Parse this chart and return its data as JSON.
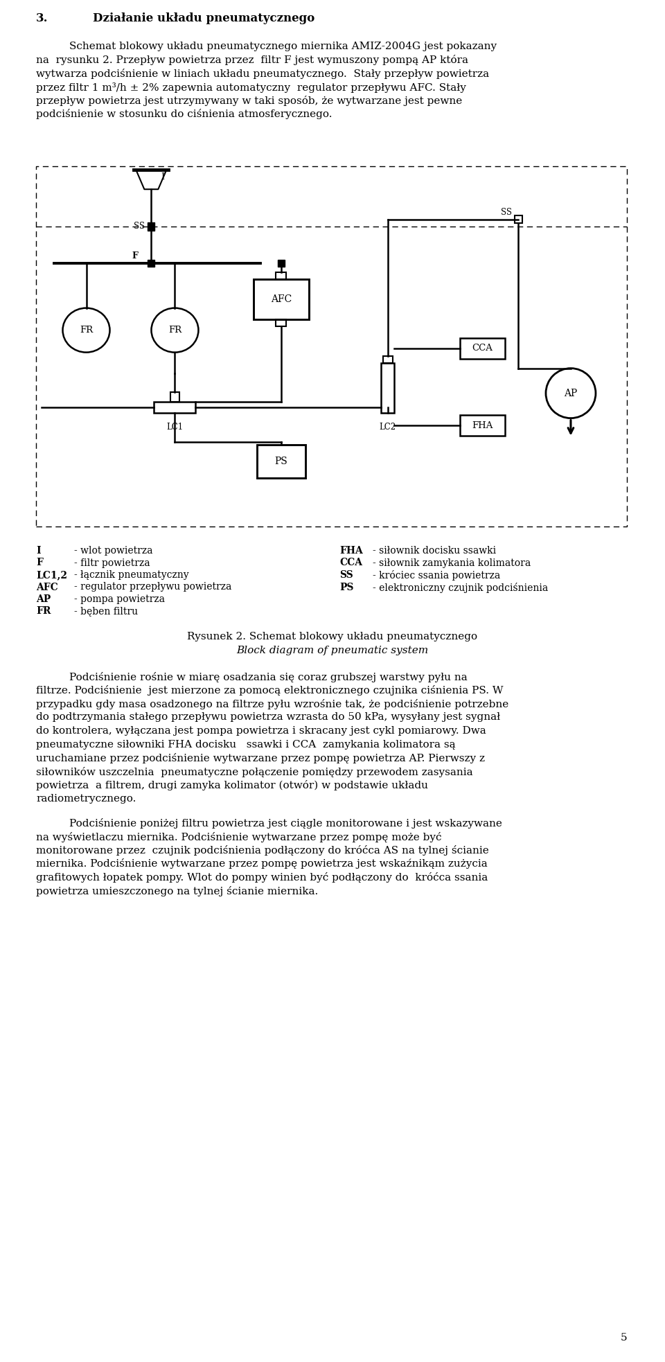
{
  "title_number": "3.",
  "title_text": "Działanie układu pneumatycznego",
  "para1_lines": [
    [
      "indent",
      "Schemat blokowy układu pneumatycznego miernika AMIZ-2004G jest pokazany"
    ],
    [
      "full",
      "na  rysunku 2. Przepływ powietrza przez  filtr F jest wymuszony pompą AP która"
    ],
    [
      "full",
      "wytwarza podciśnienie w liniach układu pneumatycznego.  Stały przepływ powietrza"
    ],
    [
      "full",
      "przez filtr 1 m³/h ± 2% zapewnia automatyczny  regulator przepływu AFC. Stały"
    ],
    [
      "full",
      "przepływ powietrza jest utrzymywany w taki sposób, że wytwarzane jest pewne"
    ],
    [
      "full",
      "podciśnienie w stosunku do ciśnienia atmosferycznego."
    ]
  ],
  "caption_bold": "Rysunek 2.",
  "caption_normal": " Schemat blokowy układu pneumatycznego",
  "caption_italic": "Block diagram of pneumatic system",
  "legend_left": [
    [
      "I",
      "- wlot powietrza"
    ],
    [
      "F",
      "- filtr powietrza"
    ],
    [
      "LC1,2",
      "- łącznik pneumatyczny"
    ],
    [
      "AFC",
      "- regulator przepływu powietrza"
    ],
    [
      "AP",
      "- pompa powietrza"
    ],
    [
      "FR",
      "- bęben filtru"
    ]
  ],
  "legend_right": [
    [
      "FHA",
      "- siłownik docisku ssawki"
    ],
    [
      "CCA",
      "- siłownik zamykania kolimatora"
    ],
    [
      "SS",
      "- króciec ssania powietrza"
    ],
    [
      "PS",
      "- elektroniczny czujnik podciśnienia"
    ]
  ],
  "para2_lines": [
    [
      "indent",
      "Podciśnienie rośnie w miarę osadzania się coraz grubszej warstwy pyłu na"
    ],
    [
      "full",
      "filtrze. Podciśnienie  jest mierzone za pomocą elektronicznego czujnika ciśnienia PS. W"
    ],
    [
      "full",
      "przypadku gdy masa osadzonego na filtrze pyłu wzrośnie tak, że podciśnienie potrzebne"
    ],
    [
      "full",
      "do podtrzymania stałego przepływu powietrza wzrasta do 50 kPa, wysyłany jest sygnał"
    ],
    [
      "full",
      "do kontrolera, wyłączana jest pompa powietrza i skracany jest cykl pomiarowy. Dwa"
    ],
    [
      "full",
      "pneumatyczne siłowniki FHA docisku   ssawki i CCA  zamykania kolimatora są"
    ],
    [
      "full",
      "uruchamiane przez podciśnienie wytwarzane przez pompę powietrza AP. Pierwszy z"
    ],
    [
      "full",
      "siłowników uszczelnia  pneumatyczne połączenie pomiędzy przewodem zasysania"
    ],
    [
      "full",
      "powietrza  a filtrem, drugi zamyka kolimator (otwór) w podstawie układu"
    ],
    [
      "full",
      "radiometrycznego."
    ]
  ],
  "para3_lines": [
    [
      "indent",
      "Podciśnienie poniżej filtru powietrza jest ciągle monitorowane i jest wskazywane"
    ],
    [
      "full",
      "na wyświetlaczu miernika. Podciśnienie wytwarzane przez pompę może być"
    ],
    [
      "full",
      "monitorowane przez  czujnik podciśnienia podłączony do króćca AS na tylnej ścianie"
    ],
    [
      "full",
      "miernika. Podciśnienie wytwarzane przez pompę powietrza jest wskaźnikąm zużycia"
    ],
    [
      "full",
      "grafitowych łopatek pompy. Wlot do pompy winien być podłączony do  króćca ssania"
    ],
    [
      "full",
      "powietrza umieszczonego na tylnej ścianie miernika."
    ]
  ],
  "page_number": "5",
  "bg_color": "#ffffff",
  "text_color": "#000000"
}
